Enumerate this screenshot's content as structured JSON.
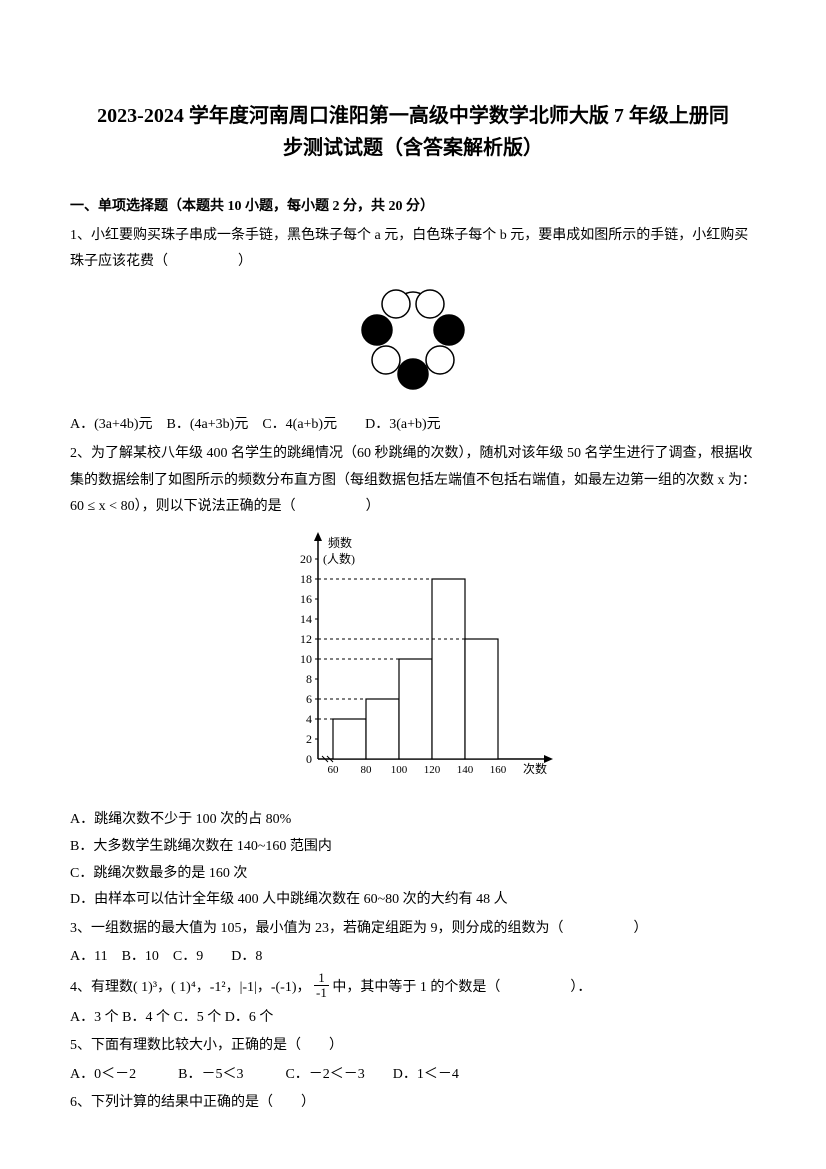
{
  "title_line1": "2023-2024 学年度河南周口淮阳第一高级中学数学北师大版 7 年级上册同",
  "title_line2": "步测试试题（含答案解析版）",
  "section1_header": "一、单项选择题（本题共 10 小题，每小题 2 分，共 20 分）",
  "q1": {
    "text1": "1、小红要购买珠子串成一条手链，黑色珠子每个 a 元，白色珠子每个 b 元，要串成如图所示的手链，小红购买珠子应该花费（　　　　　）",
    "options": "A．(3a+4b)元　B．(4a+3b)元　C．4(a+b)元　　D．3(a+b)元",
    "figure": {
      "type": "beads",
      "black_color": "#000000",
      "white_fill": "#ffffff",
      "stroke": "#000000",
      "stroke_width": 1.5,
      "radius": 15
    }
  },
  "q2": {
    "text1": "2、为了解某校八年级 400 名学生的跳绳情况（60 秒跳绳的次数），随机对该年级 50 名学生进行了调查，根据收集的数据绘制了如图所示的频数分布直方图（每组数据包括左端值不包括右端值，如最左边第一组的次数 x 为：",
    "text2": "60 ≤ x < 80），则以下说法正确的是（　　　　　）",
    "optA": "A．跳绳次数不少于 100 次的占 80%",
    "optB": "B．大多数学生跳绳次数在 140~160 范围内",
    "optC": "C．跳绳次数最多的是 160 次",
    "optD": "D．由样本可以估计全年级 400 人中跳绳次数在 60~80 次的大约有 48 人",
    "chart": {
      "type": "histogram",
      "y_label": "频数\n(人数)",
      "x_label": "次数",
      "x_ticks": [
        60,
        80,
        100,
        120,
        140,
        160
      ],
      "y_ticks": [
        0,
        2,
        4,
        6,
        8,
        10,
        12,
        14,
        16,
        18,
        20
      ],
      "bars": [
        4,
        6,
        10,
        18,
        12
      ],
      "bar_fill": "#ffffff",
      "bar_stroke": "#000000",
      "axis_color": "#000000",
      "dash_color": "#000000",
      "text_color": "#000000",
      "font_size": 12
    }
  },
  "q3": {
    "text": "3、一组数据的最大值为 105，最小值为 23，若确定组距为 9，则分成的组数为（　　　　　）",
    "options": "A．11　B．10　C．9　　D．8"
  },
  "q4": {
    "text_pre": "4、有理数( 1)³，( 1)⁴，-1²，|-1|，-(-1)，",
    "text_post": "中，其中等于 1 的个数是（　　　　　）．",
    "frac_num": "1",
    "frac_den": "-1",
    "options": "A．3 个 B．4 个 C．5 个 D．6 个"
  },
  "q5": {
    "text": "5、下面有理数比较大小，正确的是（　　）",
    "options": "A．0＜－2　　　B．－5＜3　　　C．－2＜－3　　D．1＜－4"
  },
  "q6": {
    "text": "6、下列计算的结果中正确的是（　　）"
  }
}
